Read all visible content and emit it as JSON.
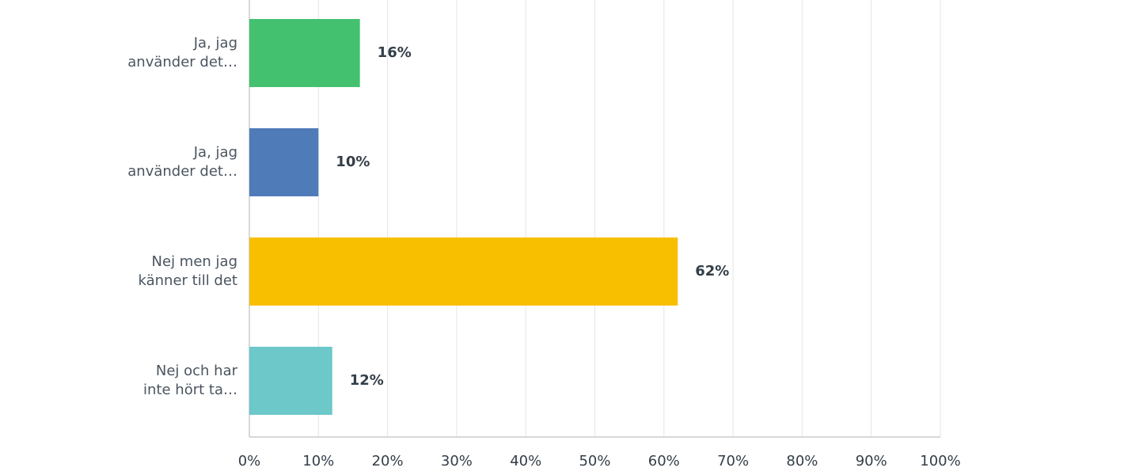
{
  "chart_data": {
    "type": "bar",
    "orientation": "horizontal",
    "categories": [
      "Ja, jag\nanvänder det…",
      "Ja, jag\nanvänder det…",
      "Nej men jag\nkänner till det",
      "Nej och har\ninte hört ta…"
    ],
    "values": [
      16,
      10,
      62,
      12
    ],
    "value_labels": [
      "16%",
      "10%",
      "62%",
      "12%"
    ],
    "colors": [
      "#43c16f",
      "#4f7bb8",
      "#f7bf00",
      "#6cc8c9"
    ],
    "xlim": [
      0,
      100
    ],
    "xticks": [
      {
        "value": 0,
        "label": "0%"
      },
      {
        "value": 10,
        "label": "10%"
      },
      {
        "value": 20,
        "label": "20%"
      },
      {
        "value": 30,
        "label": "30%"
      },
      {
        "value": 40,
        "label": "40%"
      },
      {
        "value": 50,
        "label": "50%"
      },
      {
        "value": 60,
        "label": "60%"
      },
      {
        "value": 70,
        "label": "70%"
      },
      {
        "value": 80,
        "label": "80%"
      },
      {
        "value": 90,
        "label": "90%"
      },
      {
        "value": 100,
        "label": "100%"
      }
    ],
    "grid": true
  }
}
